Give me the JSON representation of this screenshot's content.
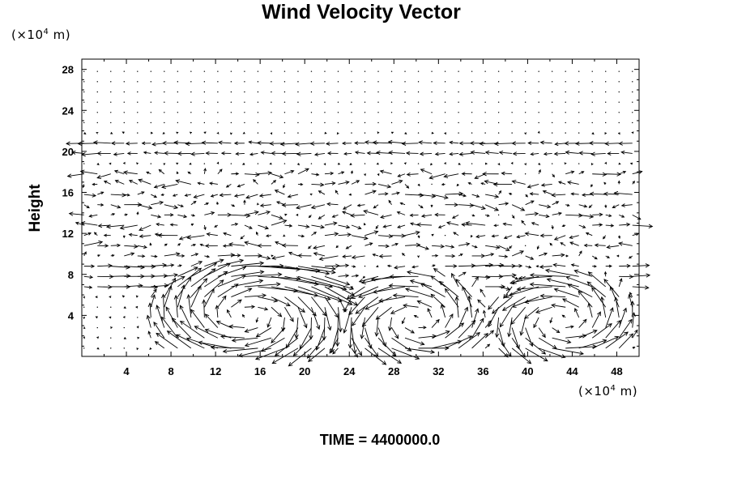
{
  "chart_data": {
    "type": "vector-field",
    "title": "Wind Velocity Vector",
    "ylabel": "Height",
    "xunit_prefix": "(×10",
    "xunit_exp": "4",
    "xunit_suffix": " m)",
    "yunit_prefix": "(×10",
    "yunit_exp": "4",
    "yunit_suffix": " m)",
    "time_label": "TIME = 4400000.0",
    "xlim": [
      0,
      50
    ],
    "ylim": [
      0,
      29
    ],
    "xticks": [
      4,
      8,
      12,
      16,
      20,
      24,
      28,
      32,
      36,
      40,
      44,
      48
    ],
    "yticks": [
      4,
      8,
      12,
      16,
      20,
      24,
      28
    ],
    "xtick_labels": [
      "4",
      "8",
      "12",
      "16",
      "20",
      "24",
      "28",
      "32",
      "36",
      "40",
      "44",
      "48"
    ],
    "ytick_labels": [
      "4",
      "8",
      "12",
      "16",
      "20",
      "24",
      "28"
    ],
    "grid": {
      "x0": 0.2,
      "dx": 1.2,
      "nx": 42,
      "y0": 0.8,
      "dy": 1.0,
      "ny": 28
    },
    "reference_speed": 1.0,
    "features": {
      "upper_layer": {
        "y_min": 19.5,
        "y_max": 21.5,
        "direction": "westward",
        "speed": 0.9
      },
      "mid_layer": {
        "y_min": 9.5,
        "y_max": 18.5,
        "direction": "mixed",
        "speed": 0.5
      },
      "vortices": [
        {
          "cx": 15,
          "cy": 4,
          "rx": 8,
          "ry": 5,
          "sense": "clockwise",
          "speed": 1.1
        },
        {
          "cx": 30,
          "cy": 3.5,
          "rx": 6,
          "ry": 4.5,
          "sense": "counterclockwise",
          "speed": 1.0
        },
        {
          "cx": 43,
          "cy": 3.5,
          "rx": 6,
          "ry": 4.5,
          "sense": "counterclockwise",
          "speed": 1.0
        }
      ]
    }
  }
}
